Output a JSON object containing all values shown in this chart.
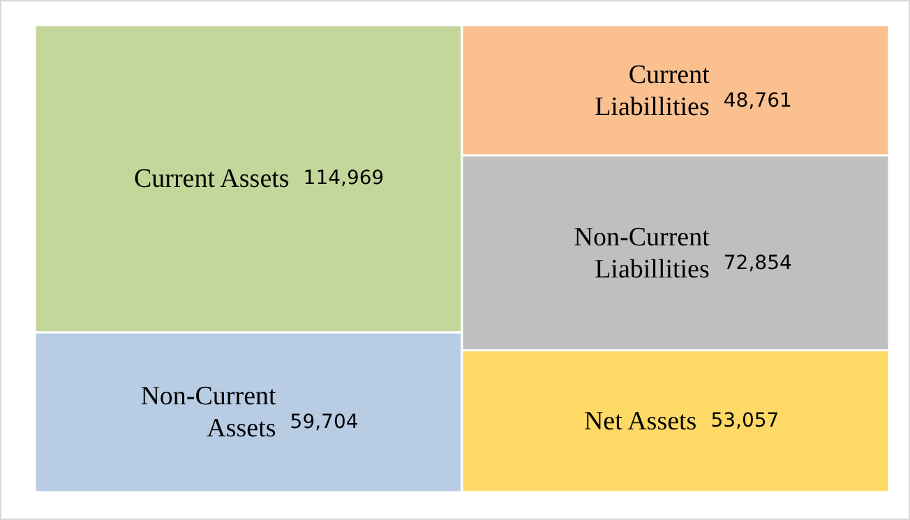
{
  "chart_data": {
    "type": "other",
    "categories": [
      "Current Assets",
      "Non-Current\nAssets",
      "Current\nLiabillities",
      "Non-Current\nLiabillities",
      "Net Assets"
    ],
    "series": [
      {
        "values": [
          114969,
          59704,
          null,
          null,
          null
        ],
        "value_labels": [
          "114,969",
          "59,704",
          null,
          null,
          null
        ],
        "colors": [
          "#c4d79b",
          "#b8cce4",
          null,
          null,
          null
        ]
      },
      {
        "values": [
          null,
          null,
          48761,
          72854,
          53057
        ],
        "value_labels": [
          null,
          null,
          "48,761",
          "72,854",
          "53,057"
        ],
        "colors": [
          null,
          null,
          "#fac090",
          "#bfbfbf",
          "#ffd966"
        ]
      }
    ]
  }
}
